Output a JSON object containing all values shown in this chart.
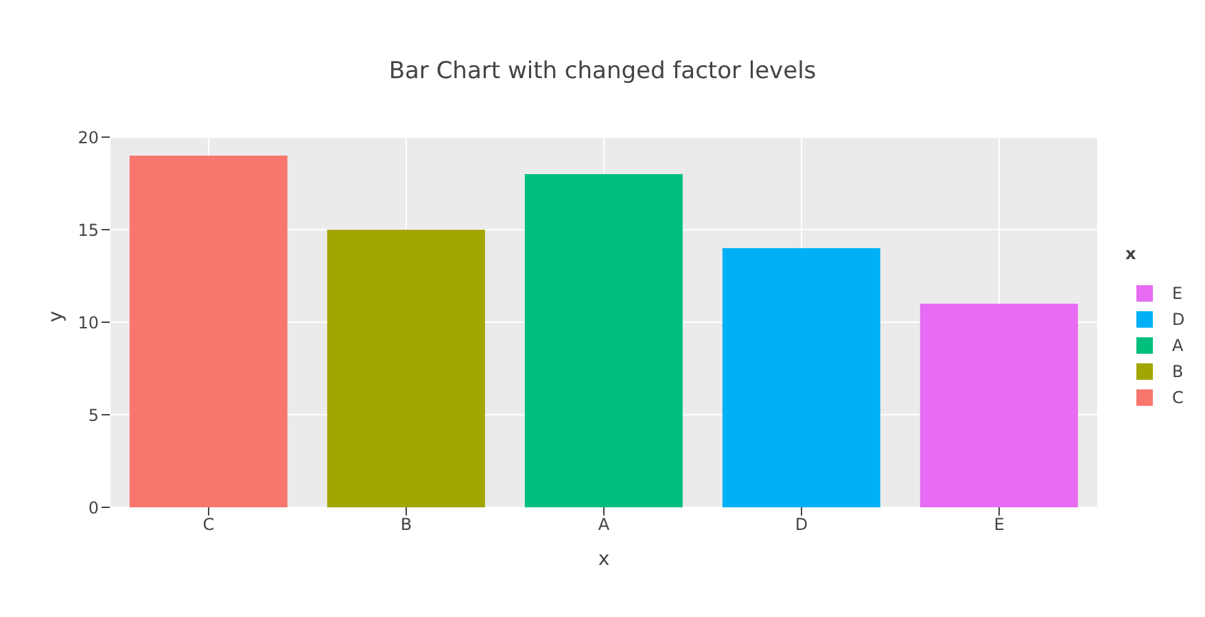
{
  "chart_data": {
    "type": "bar",
    "title": "Bar Chart with changed factor levels",
    "xlabel": "x",
    "ylabel": "y",
    "legend_title": "x",
    "categories": [
      "C",
      "B",
      "A",
      "D",
      "E"
    ],
    "series": [
      {
        "name": "E",
        "color": "#e76bf3",
        "values": [
          null,
          null,
          null,
          null,
          11
        ]
      },
      {
        "name": "D",
        "color": "#00b0f6",
        "values": [
          null,
          null,
          null,
          14,
          null
        ]
      },
      {
        "name": "A",
        "color": "#00bf7d",
        "values": [
          null,
          null,
          18,
          null,
          null
        ]
      },
      {
        "name": "B",
        "color": "#a3a500",
        "values": [
          null,
          15,
          null,
          null,
          null
        ]
      },
      {
        "name": "C",
        "color": "#f8766d",
        "values": [
          19,
          null,
          null,
          null,
          null
        ]
      }
    ],
    "stacked": true,
    "ylim": [
      0,
      20
    ],
    "yticks": [
      0,
      5,
      10,
      15,
      20
    ],
    "grid": true,
    "legend": "right"
  }
}
